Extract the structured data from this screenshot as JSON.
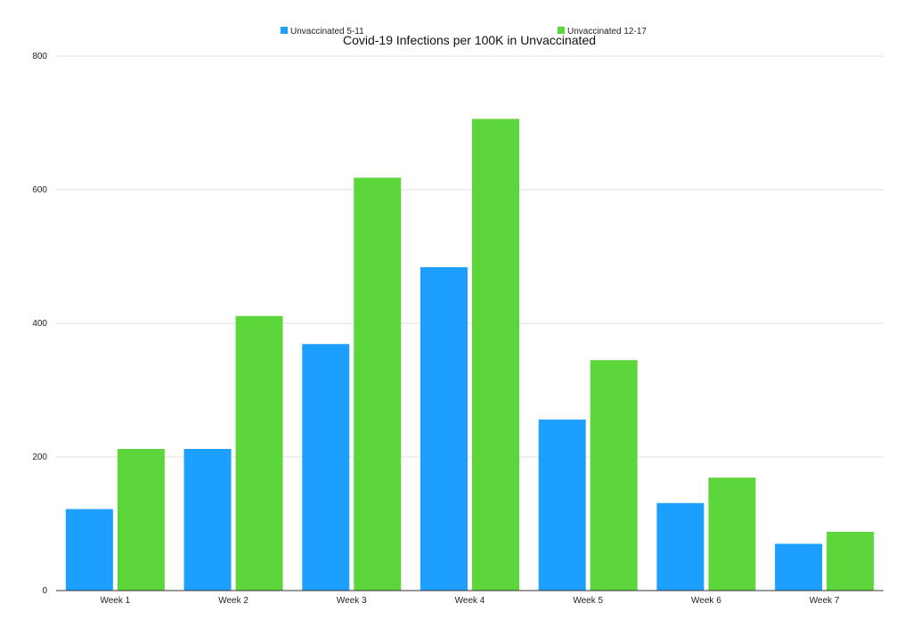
{
  "chart_data": {
    "type": "bar",
    "title": "Covid-19 Infections per 100K in Unvaccinated",
    "xlabel": "",
    "ylabel": "",
    "categories": [
      "Week 1",
      "Week 2",
      "Week 3",
      "Week 4",
      "Week 5",
      "Week 6",
      "Week 7"
    ],
    "series": [
      {
        "name": "Unvaccinated 5-11",
        "color": "#1c9fff",
        "values": [
          122,
          212,
          369,
          484,
          256,
          131,
          70
        ]
      },
      {
        "name": "Unvaccinated 12-17",
        "color": "#5cd63a",
        "values": [
          212,
          411,
          618,
          706,
          345,
          169,
          88
        ]
      }
    ],
    "ylim": [
      0,
      800
    ],
    "yticks": [
      "0",
      "200",
      "400",
      "600",
      "800"
    ],
    "grid": true,
    "legend_position": "top-center"
  }
}
